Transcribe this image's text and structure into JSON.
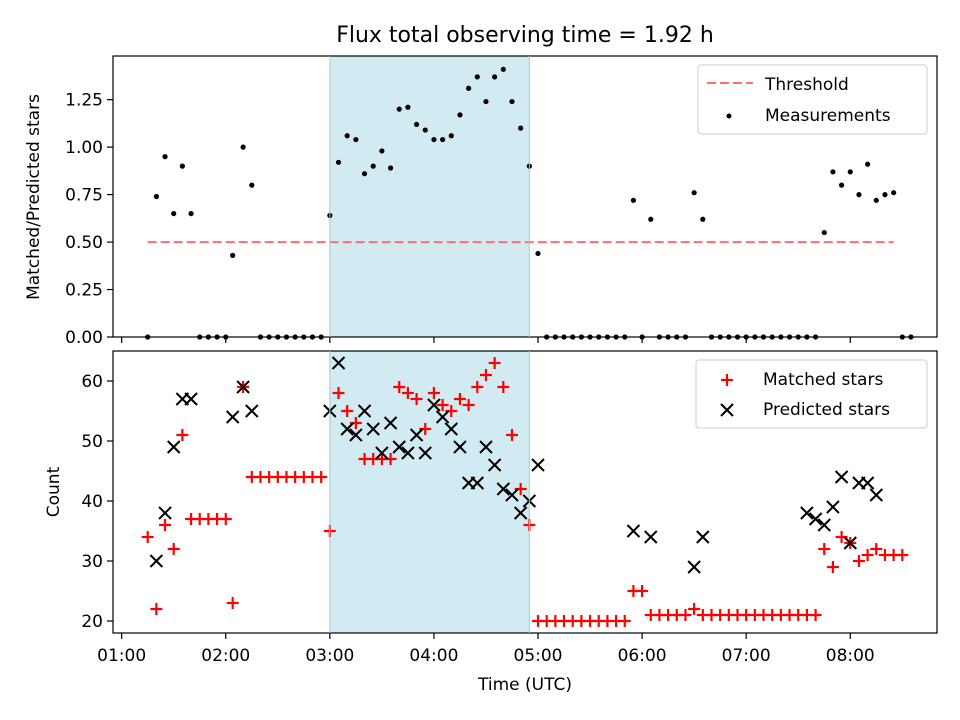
{
  "figure": {
    "title": "Flux total observing time = 1.92 h",
    "xlabel": "Time (UTC)"
  },
  "chart_data": [
    {
      "type": "scatter",
      "panel": "top",
      "ylabel": "Matched/Predicted stars",
      "xlim": [
        "00:55",
        "08:50"
      ],
      "ylim": [
        0,
        1.48
      ],
      "yticks": [
        "0.00",
        "0.25",
        "0.50",
        "0.75",
        "1.00",
        "1.25"
      ],
      "shaded_region": {
        "x": [
          "03:00",
          "04:55"
        ],
        "color": "#add8e6"
      },
      "legend": "top-right",
      "series": [
        {
          "name": "Threshold",
          "style": "dashed-line",
          "color": "#ff6f6f",
          "x": [
            "01:15",
            "08:25"
          ],
          "y": [
            0.5,
            0.5
          ]
        },
        {
          "name": "Measurements",
          "style": "dot",
          "color": "#000000",
          "points": [
            [
              "01:15",
              0
            ],
            [
              "01:20",
              0.74
            ],
            [
              "01:25",
              0.95
            ],
            [
              "01:30",
              0.65
            ],
            [
              "01:35",
              0.9
            ],
            [
              "01:40",
              0.65
            ],
            [
              "01:45",
              0
            ],
            [
              "01:50",
              0
            ],
            [
              "01:55",
              0
            ],
            [
              "02:00",
              0
            ],
            [
              "02:04",
              0.43
            ],
            [
              "02:10",
              1.0
            ],
            [
              "02:15",
              0.8
            ],
            [
              "02:20",
              0
            ],
            [
              "02:25",
              0
            ],
            [
              "02:30",
              0
            ],
            [
              "02:35",
              0
            ],
            [
              "02:40",
              0
            ],
            [
              "02:45",
              0
            ],
            [
              "02:50",
              0
            ],
            [
              "02:55",
              0
            ],
            [
              "03:00",
              0.64
            ],
            [
              "03:05",
              0.92
            ],
            [
              "03:10",
              1.06
            ],
            [
              "03:15",
              1.04
            ],
            [
              "03:20",
              0.86
            ],
            [
              "03:25",
              0.9
            ],
            [
              "03:30",
              0.98
            ],
            [
              "03:35",
              0.89
            ],
            [
              "03:40",
              1.2
            ],
            [
              "03:45",
              1.21
            ],
            [
              "03:50",
              1.12
            ],
            [
              "03:55",
              1.09
            ],
            [
              "04:00",
              1.04
            ],
            [
              "04:05",
              1.04
            ],
            [
              "04:10",
              1.06
            ],
            [
              "04:15",
              1.17
            ],
            [
              "04:20",
              1.31
            ],
            [
              "04:25",
              1.37
            ],
            [
              "04:30",
              1.24
            ],
            [
              "04:35",
              1.37
            ],
            [
              "04:40",
              1.41
            ],
            [
              "04:45",
              1.24
            ],
            [
              "04:50",
              1.1
            ],
            [
              "04:55",
              0.9
            ],
            [
              "05:00",
              0.44
            ],
            [
              "05:05",
              0
            ],
            [
              "05:10",
              0
            ],
            [
              "05:15",
              0
            ],
            [
              "05:20",
              0
            ],
            [
              "05:25",
              0
            ],
            [
              "05:30",
              0
            ],
            [
              "05:35",
              0
            ],
            [
              "05:40",
              0
            ],
            [
              "05:45",
              0
            ],
            [
              "05:50",
              0
            ],
            [
              "05:55",
              0.72
            ],
            [
              "06:00",
              0
            ],
            [
              "06:05",
              0.62
            ],
            [
              "06:10",
              0
            ],
            [
              "06:15",
              0
            ],
            [
              "06:20",
              0
            ],
            [
              "06:25",
              0
            ],
            [
              "06:30",
              0.76
            ],
            [
              "06:35",
              0.62
            ],
            [
              "06:40",
              0
            ],
            [
              "06:45",
              0
            ],
            [
              "06:50",
              0
            ],
            [
              "06:55",
              0
            ],
            [
              "07:00",
              0
            ],
            [
              "07:05",
              0
            ],
            [
              "07:10",
              0
            ],
            [
              "07:15",
              0
            ],
            [
              "07:20",
              0
            ],
            [
              "07:25",
              0
            ],
            [
              "07:30",
              0
            ],
            [
              "07:35",
              0
            ],
            [
              "07:40",
              0
            ],
            [
              "07:45",
              0.55
            ],
            [
              "07:50",
              0.87
            ],
            [
              "07:55",
              0.8
            ],
            [
              "08:00",
              0.87
            ],
            [
              "08:05",
              0.75
            ],
            [
              "08:10",
              0.91
            ],
            [
              "08:15",
              0.72
            ],
            [
              "08:20",
              0.75
            ],
            [
              "08:25",
              0.76
            ],
            [
              "08:30",
              0
            ],
            [
              "08:35",
              0
            ]
          ]
        }
      ]
    },
    {
      "type": "scatter",
      "panel": "bottom",
      "ylabel": "Count",
      "xlabel": "Time (UTC)",
      "xlim": [
        "00:55",
        "08:50"
      ],
      "ylim": [
        18,
        65
      ],
      "yticks": [
        "20",
        "30",
        "40",
        "50",
        "60"
      ],
      "xticks": [
        "01:00",
        "02:00",
        "03:00",
        "04:00",
        "05:00",
        "06:00",
        "07:00",
        "08:00"
      ],
      "shaded_region": {
        "x": [
          "03:00",
          "04:55"
        ],
        "color": "#add8e6"
      },
      "legend": "top-right",
      "series": [
        {
          "name": "Matched stars",
          "style": "plus",
          "color": "#ff0000",
          "points": [
            [
              "01:15",
              34
            ],
            [
              "01:20",
              22
            ],
            [
              "01:25",
              36
            ],
            [
              "01:30",
              32
            ],
            [
              "01:35",
              51
            ],
            [
              "01:40",
              37
            ],
            [
              "01:45",
              37
            ],
            [
              "01:50",
              37
            ],
            [
              "01:55",
              37
            ],
            [
              "02:00",
              37
            ],
            [
              "02:04",
              23
            ],
            [
              "02:10",
              59
            ],
            [
              "02:15",
              44
            ],
            [
              "02:20",
              44
            ],
            [
              "02:25",
              44
            ],
            [
              "02:30",
              44
            ],
            [
              "02:35",
              44
            ],
            [
              "02:40",
              44
            ],
            [
              "02:45",
              44
            ],
            [
              "02:50",
              44
            ],
            [
              "02:55",
              44
            ],
            [
              "03:00",
              35
            ],
            [
              "03:05",
              58
            ],
            [
              "03:10",
              55
            ],
            [
              "03:15",
              53
            ],
            [
              "03:20",
              47
            ],
            [
              "03:25",
              47
            ],
            [
              "03:30",
              47
            ],
            [
              "03:35",
              47
            ],
            [
              "03:40",
              59
            ],
            [
              "03:45",
              58
            ],
            [
              "03:50",
              57
            ],
            [
              "03:55",
              52
            ],
            [
              "04:00",
              58
            ],
            [
              "04:05",
              56
            ],
            [
              "04:10",
              55
            ],
            [
              "04:15",
              57
            ],
            [
              "04:20",
              56
            ],
            [
              "04:25",
              59
            ],
            [
              "04:30",
              61
            ],
            [
              "04:35",
              63
            ],
            [
              "04:40",
              59
            ],
            [
              "04:45",
              51
            ],
            [
              "04:50",
              42
            ],
            [
              "04:55",
              36
            ],
            [
              "05:00",
              20
            ],
            [
              "05:05",
              20
            ],
            [
              "05:10",
              20
            ],
            [
              "05:15",
              20
            ],
            [
              "05:20",
              20
            ],
            [
              "05:25",
              20
            ],
            [
              "05:30",
              20
            ],
            [
              "05:35",
              20
            ],
            [
              "05:40",
              20
            ],
            [
              "05:45",
              20
            ],
            [
              "05:50",
              20
            ],
            [
              "05:55",
              25
            ],
            [
              "06:00",
              25
            ],
            [
              "06:05",
              21
            ],
            [
              "06:10",
              21
            ],
            [
              "06:15",
              21
            ],
            [
              "06:20",
              21
            ],
            [
              "06:25",
              21
            ],
            [
              "06:30",
              22
            ],
            [
              "06:35",
              21
            ],
            [
              "06:40",
              21
            ],
            [
              "06:45",
              21
            ],
            [
              "06:50",
              21
            ],
            [
              "06:55",
              21
            ],
            [
              "07:00",
              21
            ],
            [
              "07:05",
              21
            ],
            [
              "07:10",
              21
            ],
            [
              "07:15",
              21
            ],
            [
              "07:20",
              21
            ],
            [
              "07:25",
              21
            ],
            [
              "07:30",
              21
            ],
            [
              "07:35",
              21
            ],
            [
              "07:40",
              21
            ],
            [
              "07:45",
              32
            ],
            [
              "07:50",
              29
            ],
            [
              "07:55",
              34
            ],
            [
              "08:00",
              33
            ],
            [
              "08:05",
              30
            ],
            [
              "08:10",
              31
            ],
            [
              "08:15",
              32
            ],
            [
              "08:20",
              31
            ],
            [
              "08:25",
              31
            ],
            [
              "08:30",
              31
            ]
          ]
        },
        {
          "name": "Predicted stars",
          "style": "cross",
          "color": "#000000",
          "points": [
            [
              "01:20",
              30
            ],
            [
              "01:25",
              38
            ],
            [
              "01:30",
              49
            ],
            [
              "01:35",
              57
            ],
            [
              "01:40",
              57
            ],
            [
              "02:04",
              54
            ],
            [
              "02:10",
              59
            ],
            [
              "02:15",
              55
            ],
            [
              "03:00",
              55
            ],
            [
              "03:05",
              63
            ],
            [
              "03:10",
              52
            ],
            [
              "03:15",
              51
            ],
            [
              "03:20",
              55
            ],
            [
              "03:25",
              52
            ],
            [
              "03:30",
              48
            ],
            [
              "03:35",
              53
            ],
            [
              "03:40",
              49
            ],
            [
              "03:45",
              48
            ],
            [
              "03:50",
              51
            ],
            [
              "03:55",
              48
            ],
            [
              "04:00",
              56
            ],
            [
              "04:05",
              54
            ],
            [
              "04:10",
              52
            ],
            [
              "04:15",
              49
            ],
            [
              "04:20",
              43
            ],
            [
              "04:25",
              43
            ],
            [
              "04:30",
              49
            ],
            [
              "04:35",
              46
            ],
            [
              "04:40",
              42
            ],
            [
              "04:45",
              41
            ],
            [
              "04:50",
              38
            ],
            [
              "04:55",
              40
            ],
            [
              "05:00",
              46
            ],
            [
              "05:55",
              35
            ],
            [
              "06:05",
              34
            ],
            [
              "06:30",
              29
            ],
            [
              "06:35",
              34
            ],
            [
              "07:35",
              38
            ],
            [
              "07:40",
              37
            ],
            [
              "07:45",
              36
            ],
            [
              "07:50",
              39
            ],
            [
              "07:55",
              44
            ],
            [
              "08:00",
              33
            ],
            [
              "08:05",
              43
            ],
            [
              "08:10",
              43
            ],
            [
              "08:15",
              41
            ]
          ]
        }
      ]
    }
  ]
}
